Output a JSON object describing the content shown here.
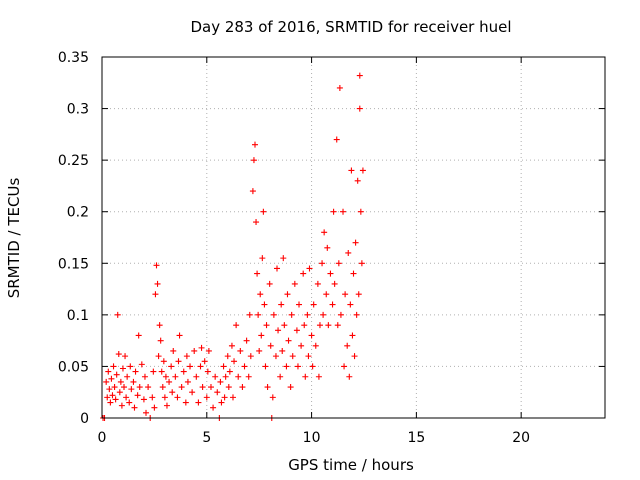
{
  "chart_data": {
    "type": "scatter",
    "title": "Day 283 of 2016, SRMTID for receiver huel",
    "xlabel": "GPS time / hours",
    "ylabel": "SRMTID / TECUs",
    "xlim": [
      0,
      24
    ],
    "ylim": [
      0,
      0.35
    ],
    "xticks": [
      0,
      5,
      10,
      15,
      20
    ],
    "xtick_labels": [
      "0",
      "5",
      "10",
      "15",
      "20"
    ],
    "yticks": [
      0,
      0.05,
      0.1,
      0.15,
      0.2,
      0.25,
      0.3,
      0.35
    ],
    "ytick_labels": [
      "0",
      "0.05",
      "0.1",
      "0.15",
      "0.2",
      "0.25",
      "0.3",
      "0.35"
    ],
    "grid": true,
    "marker": "+",
    "series": [
      {
        "name": "SRMTID",
        "color": "#ff0000",
        "points": [
          [
            0.05,
            0.0
          ],
          [
            0.12,
            0.0
          ],
          [
            0.2,
            0.035
          ],
          [
            0.25,
            0.02
          ],
          [
            0.3,
            0.045
          ],
          [
            0.35,
            0.028
          ],
          [
            0.4,
            0.015
          ],
          [
            0.45,
            0.038
          ],
          [
            0.5,
            0.022
          ],
          [
            0.55,
            0.05
          ],
          [
            0.6,
            0.03
          ],
          [
            0.65,
            0.018
          ],
          [
            0.7,
            0.042
          ],
          [
            0.75,
            0.1
          ],
          [
            0.8,
            0.062
          ],
          [
            0.85,
            0.025
          ],
          [
            0.9,
            0.035
          ],
          [
            0.95,
            0.012
          ],
          [
            1.0,
            0.048
          ],
          [
            1.05,
            0.03
          ],
          [
            1.1,
            0.06
          ],
          [
            1.15,
            0.02
          ],
          [
            1.2,
            0.04
          ],
          [
            1.3,
            0.015
          ],
          [
            1.35,
            0.05
          ],
          [
            1.4,
            0.028
          ],
          [
            1.5,
            0.035
          ],
          [
            1.55,
            0.01
          ],
          [
            1.6,
            0.045
          ],
          [
            1.7,
            0.022
          ],
          [
            1.75,
            0.08
          ],
          [
            1.8,
            0.03
          ],
          [
            1.9,
            0.052
          ],
          [
            2.0,
            0.018
          ],
          [
            2.05,
            0.04
          ],
          [
            2.1,
            0.005
          ],
          [
            2.2,
            0.03
          ],
          [
            2.3,
            0.0
          ],
          [
            2.4,
            0.02
          ],
          [
            2.45,
            0.045
          ],
          [
            2.5,
            0.01
          ],
          [
            2.55,
            0.12
          ],
          [
            2.6,
            0.148
          ],
          [
            2.65,
            0.13
          ],
          [
            2.7,
            0.06
          ],
          [
            2.75,
            0.09
          ],
          [
            2.8,
            0.075
          ],
          [
            2.85,
            0.045
          ],
          [
            2.9,
            0.03
          ],
          [
            2.95,
            0.055
          ],
          [
            3.0,
            0.02
          ],
          [
            3.05,
            0.04
          ],
          [
            3.1,
            0.012
          ],
          [
            3.2,
            0.035
          ],
          [
            3.3,
            0.05
          ],
          [
            3.35,
            0.025
          ],
          [
            3.4,
            0.065
          ],
          [
            3.5,
            0.04
          ],
          [
            3.6,
            0.02
          ],
          [
            3.65,
            0.055
          ],
          [
            3.7,
            0.08
          ],
          [
            3.8,
            0.03
          ],
          [
            3.9,
            0.045
          ],
          [
            4.0,
            0.015
          ],
          [
            4.05,
            0.06
          ],
          [
            4.1,
            0.035
          ],
          [
            4.2,
            0.05
          ],
          [
            4.3,
            0.025
          ],
          [
            4.4,
            0.065
          ],
          [
            4.5,
            0.04
          ],
          [
            4.6,
            0.015
          ],
          [
            4.7,
            0.05
          ],
          [
            4.75,
            0.068
          ],
          [
            4.8,
            0.03
          ],
          [
            4.9,
            0.055
          ],
          [
            5.0,
            0.02
          ],
          [
            5.05,
            0.045
          ],
          [
            5.1,
            0.065
          ],
          [
            5.2,
            0.03
          ],
          [
            5.3,
            0.01
          ],
          [
            5.4,
            0.04
          ],
          [
            5.5,
            0.025
          ],
          [
            5.6,
            0.0
          ],
          [
            5.65,
            0.035
          ],
          [
            5.7,
            0.015
          ],
          [
            5.8,
            0.05
          ],
          [
            5.85,
            0.02
          ],
          [
            5.9,
            0.04
          ],
          [
            6.0,
            0.06
          ],
          [
            6.05,
            0.03
          ],
          [
            6.1,
            0.045
          ],
          [
            6.2,
            0.07
          ],
          [
            6.25,
            0.02
          ],
          [
            6.3,
            0.055
          ],
          [
            6.4,
            0.09
          ],
          [
            6.5,
            0.04
          ],
          [
            6.6,
            0.065
          ],
          [
            6.7,
            0.03
          ],
          [
            6.8,
            0.05
          ],
          [
            6.9,
            0.075
          ],
          [
            7.0,
            0.04
          ],
          [
            7.05,
            0.1
          ],
          [
            7.1,
            0.06
          ],
          [
            7.2,
            0.22
          ],
          [
            7.25,
            0.25
          ],
          [
            7.3,
            0.265
          ],
          [
            7.35,
            0.19
          ],
          [
            7.4,
            0.14
          ],
          [
            7.45,
            0.1
          ],
          [
            7.5,
            0.065
          ],
          [
            7.55,
            0.12
          ],
          [
            7.6,
            0.08
          ],
          [
            7.65,
            0.155
          ],
          [
            7.7,
            0.2
          ],
          [
            7.75,
            0.11
          ],
          [
            7.8,
            0.05
          ],
          [
            7.85,
            0.09
          ],
          [
            7.9,
            0.03
          ],
          [
            8.0,
            0.13
          ],
          [
            8.05,
            0.07
          ],
          [
            8.1,
            0.0
          ],
          [
            8.15,
            0.02
          ],
          [
            8.2,
            0.1
          ],
          [
            8.3,
            0.06
          ],
          [
            8.35,
            0.145
          ],
          [
            8.4,
            0.085
          ],
          [
            8.5,
            0.04
          ],
          [
            8.55,
            0.11
          ],
          [
            8.6,
            0.065
          ],
          [
            8.65,
            0.155
          ],
          [
            8.7,
            0.09
          ],
          [
            8.8,
            0.05
          ],
          [
            8.85,
            0.12
          ],
          [
            8.9,
            0.075
          ],
          [
            9.0,
            0.03
          ],
          [
            9.05,
            0.1
          ],
          [
            9.1,
            0.06
          ],
          [
            9.2,
            0.13
          ],
          [
            9.3,
            0.085
          ],
          [
            9.35,
            0.05
          ],
          [
            9.4,
            0.11
          ],
          [
            9.5,
            0.07
          ],
          [
            9.6,
            0.14
          ],
          [
            9.65,
            0.09
          ],
          [
            9.7,
            0.04
          ],
          [
            9.8,
            0.1
          ],
          [
            9.85,
            0.06
          ],
          [
            9.9,
            0.145
          ],
          [
            10.0,
            0.08
          ],
          [
            10.05,
            0.05
          ],
          [
            10.1,
            0.11
          ],
          [
            10.2,
            0.07
          ],
          [
            10.3,
            0.13
          ],
          [
            10.35,
            0.04
          ],
          [
            10.4,
            0.09
          ],
          [
            10.5,
            0.15
          ],
          [
            10.55,
            0.1
          ],
          [
            10.6,
            0.18
          ],
          [
            10.7,
            0.12
          ],
          [
            10.75,
            0.165
          ],
          [
            10.8,
            0.09
          ],
          [
            10.9,
            0.14
          ],
          [
            11.0,
            0.11
          ],
          [
            11.05,
            0.2
          ],
          [
            11.1,
            0.13
          ],
          [
            11.2,
            0.27
          ],
          [
            11.25,
            0.09
          ],
          [
            11.3,
            0.15
          ],
          [
            11.35,
            0.32
          ],
          [
            11.4,
            0.1
          ],
          [
            11.5,
            0.2
          ],
          [
            11.55,
            0.05
          ],
          [
            11.6,
            0.12
          ],
          [
            11.7,
            0.07
          ],
          [
            11.75,
            0.16
          ],
          [
            11.8,
            0.04
          ],
          [
            11.85,
            0.11
          ],
          [
            11.9,
            0.24
          ],
          [
            11.95,
            0.08
          ],
          [
            12.0,
            0.14
          ],
          [
            12.05,
            0.06
          ],
          [
            12.1,
            0.17
          ],
          [
            12.15,
            0.1
          ],
          [
            12.2,
            0.23
          ],
          [
            12.25,
            0.12
          ],
          [
            12.3,
            0.3
          ],
          [
            12.3,
            0.332
          ],
          [
            12.35,
            0.2
          ],
          [
            12.4,
            0.15
          ],
          [
            12.45,
            0.24
          ]
        ]
      }
    ]
  }
}
